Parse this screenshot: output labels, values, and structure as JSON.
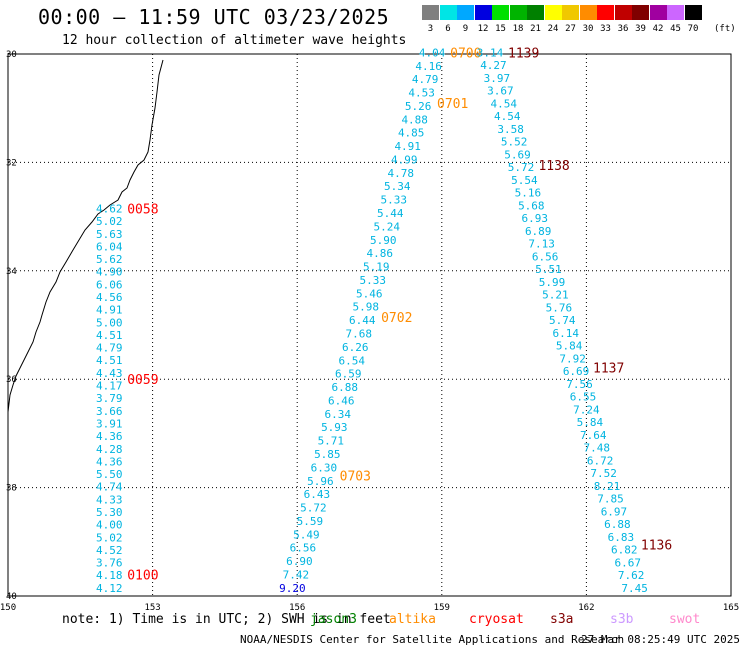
{
  "title": "00:00 — 11:59 UTC 03/23/2025",
  "subtitle": "12 hour collection of altimeter wave heights",
  "note": "note: 1) Time is in UTC; 2) SWH is in feet",
  "credit": "NOAA/NESDIS Center for Satellite Applications and Research",
  "timestamp": "27 Mar 08:25:49 UTC 2025",
  "legend": {
    "unit": "(ft)",
    "bins": [
      {
        "label": "3",
        "color": "#7f7f7f"
      },
      {
        "label": "6",
        "color": "#00e5e5"
      },
      {
        "label": "9",
        "color": "#00a8ff"
      },
      {
        "label": "12",
        "color": "#0000e0"
      },
      {
        "label": "15",
        "color": "#00e000"
      },
      {
        "label": "18",
        "color": "#00b400"
      },
      {
        "label": "21",
        "color": "#008000"
      },
      {
        "label": "24",
        "color": "#ffff00"
      },
      {
        "label": "27",
        "color": "#f0c800"
      },
      {
        "label": "30",
        "color": "#ff8c00"
      },
      {
        "label": "33",
        "color": "#ff0000"
      },
      {
        "label": "36",
        "color": "#c00000"
      },
      {
        "label": "39",
        "color": "#800000"
      },
      {
        "label": "42",
        "color": "#a000a0"
      },
      {
        "label": "45",
        "color": "#cc66ff"
      },
      {
        "label": "70",
        "color": "#000000"
      }
    ]
  },
  "satellites": [
    {
      "name": "jason3",
      "color": "#008000"
    },
    {
      "name": "altika",
      "color": "#ff8c00"
    },
    {
      "name": "cryosat",
      "color": "#ff0000"
    },
    {
      "name": "s3a",
      "color": "#800000"
    },
    {
      "name": "s3b",
      "color": "#cc99ff"
    },
    {
      "name": "swot",
      "color": "#ff88cc"
    }
  ],
  "axes": {
    "lon_ticks": [
      "150",
      "153",
      "156",
      "159",
      "162",
      "165"
    ],
    "lat_ticks": [
      "-30",
      "-32",
      "-34",
      "-36",
      "-38",
      "-40"
    ],
    "lon_range": [
      150,
      165
    ],
    "lat_range": [
      -40,
      -30
    ]
  },
  "tracks": [
    {
      "satellite": "cryosat",
      "lon_start": 152.1,
      "lat_start": -32.85,
      "lat_end": -39.85,
      "heights": [
        "4.62",
        "5.02",
        "5.63",
        "6.04",
        "5.62",
        "4.90",
        "6.06",
        "4.56",
        "4.91",
        "5.00",
        "4.51",
        "4.79",
        "4.51",
        "4.43",
        "4.17",
        "3.79",
        "3.66",
        "3.91",
        "4.36",
        "4.28",
        "4.36",
        "5.50",
        "4.74",
        "4.33",
        "5.30",
        "4.00",
        "5.02",
        "4.52",
        "3.76",
        "4.18",
        "4.12"
      ],
      "times": [
        {
          "label": "0058",
          "lat": -32.85
        },
        {
          "label": "0059",
          "lat": -36.0
        },
        {
          "label": "0100",
          "lat": -39.6
        }
      ]
    },
    {
      "satellite": "altika",
      "lon_start": 158.8,
      "lat_start": -29.97,
      "lon_end": 155.9,
      "lat_end": -39.85,
      "heights": [
        "4.04",
        "4.16",
        "4.79",
        "4.53",
        "5.26",
        "4.88",
        "4.85",
        "4.91",
        "4.99",
        "4.78",
        "5.34",
        "5.33",
        "5.44",
        "5.24",
        "5.90",
        "4.86",
        "5.19",
        "5.33",
        "5.46",
        "5.98",
        "6.44",
        "7.68",
        "6.26",
        "6.54",
        "6.59",
        "6.88",
        "6.46",
        "6.34",
        "5.93",
        "5.71",
        "5.85",
        "6.30",
        "5.96",
        "6.43",
        "5.72",
        "5.59",
        "5.49",
        "6.56",
        "6.90",
        "7.42",
        "9.20"
      ],
      "times": [
        {
          "label": "0700",
          "lat": -29.97
        },
        {
          "label": "0701",
          "lat": -30.9
        },
        {
          "label": "0702",
          "lat": -34.85
        },
        {
          "label": "0703",
          "lat": -37.78
        }
      ]
    },
    {
      "satellite": "s3a",
      "lon_start": 160.0,
      "lat_start": -29.97,
      "lon_end": 163.0,
      "lat_end": -39.85,
      "heights": [
        "3.14",
        "4.27",
        "3.97",
        "3.67",
        "4.54",
        "4.54",
        "3.58",
        "5.52",
        "5.69",
        "5.72",
        "5.54",
        "5.16",
        "5.68",
        "6.93",
        "6.89",
        "7.13",
        "6.56",
        "5.51",
        "5.99",
        "5.21",
        "5.76",
        "5.74",
        "6.14",
        "5.84",
        "7.92",
        "6.69",
        "7.56",
        "6.55",
        "7.24",
        "5.84",
        "7.64",
        "7.48",
        "6.72",
        "7.52",
        "8.21",
        "7.85",
        "6.97",
        "6.88",
        "6.83",
        "6.82",
        "6.67",
        "7.62",
        "7.45"
      ],
      "times": [
        {
          "label": "1139",
          "lat": -29.97
        },
        {
          "label": "1138",
          "lat": -32.05
        },
        {
          "label": "1137",
          "lat": -35.78
        },
        {
          "label": "1136",
          "lat": -39.05
        }
      ]
    }
  ]
}
